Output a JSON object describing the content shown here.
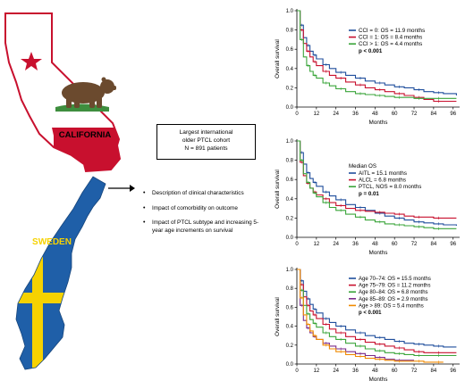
{
  "maps": {
    "california_label": "CALIFORNIA",
    "sweden_label": "SWEDEN",
    "colors": {
      "ca_red": "#c8102e",
      "ca_bear": "#6b4a2e",
      "ca_grass": "#3e8e3e",
      "se_blue": "#1f5fa8",
      "se_yellow": "#f6d200"
    }
  },
  "summary_box": {
    "line1": "Largest international",
    "line2": "older PTCL cohort",
    "line3": "N = 891 patients"
  },
  "bullets": [
    "Description of clinical characteristics",
    "Impact of comorbidity on outcome",
    "Impact of PTCL subtype and increasing 5-year age increments on survival"
  ],
  "chart_data": [
    {
      "type": "line",
      "xlabel": "Months",
      "ylabel": "Overall survival",
      "xlim": [
        0,
        100
      ],
      "ylim": [
        0,
        1.0
      ],
      "xticks": [
        0,
        12,
        24,
        36,
        48,
        60,
        72,
        84,
        96
      ],
      "yticks": [
        0.0,
        0.2,
        0.4,
        0.6,
        0.8,
        1.0
      ],
      "legend_title": "",
      "legend": [
        "CCI = 0: OS = 11.9 months",
        "CCI = 1: OS = 8.4 months",
        "CCI > 1: OS = 4.4 months"
      ],
      "pvalue": "p < 0.001",
      "series": [
        {
          "color": "#1f4e9c",
          "x": [
            0,
            2,
            4,
            6,
            8,
            10,
            12,
            16,
            20,
            24,
            30,
            36,
            42,
            48,
            54,
            60,
            66,
            72,
            78,
            84,
            90,
            98
          ],
          "y": [
            1.0,
            0.85,
            0.72,
            0.64,
            0.58,
            0.54,
            0.5,
            0.44,
            0.4,
            0.36,
            0.33,
            0.3,
            0.27,
            0.25,
            0.23,
            0.21,
            0.2,
            0.18,
            0.16,
            0.15,
            0.14,
            0.12
          ]
        },
        {
          "color": "#c8102e",
          "x": [
            0,
            2,
            4,
            6,
            8,
            10,
            12,
            16,
            20,
            24,
            30,
            36,
            42,
            48,
            54,
            60,
            66,
            72,
            78,
            84,
            90,
            98
          ],
          "y": [
            1.0,
            0.8,
            0.66,
            0.58,
            0.52,
            0.47,
            0.43,
            0.37,
            0.33,
            0.3,
            0.26,
            0.23,
            0.2,
            0.18,
            0.16,
            0.14,
            0.12,
            0.1,
            0.08,
            0.06,
            0.06,
            0.06
          ]
        },
        {
          "color": "#3aa53a",
          "x": [
            0,
            2,
            4,
            6,
            8,
            10,
            12,
            16,
            20,
            24,
            30,
            36,
            42,
            48,
            54,
            60,
            66,
            72,
            78,
            84,
            90,
            98
          ],
          "y": [
            1.0,
            0.7,
            0.52,
            0.43,
            0.37,
            0.33,
            0.3,
            0.25,
            0.22,
            0.19,
            0.16,
            0.14,
            0.13,
            0.12,
            0.11,
            0.1,
            0.1,
            0.09,
            0.09,
            0.09,
            0.09,
            0.09
          ]
        }
      ]
    },
    {
      "type": "line",
      "xlabel": "Months",
      "ylabel": "Overall survival",
      "xlim": [
        0,
        100
      ],
      "ylim": [
        0,
        1.0
      ],
      "xticks": [
        0,
        12,
        24,
        36,
        48,
        60,
        72,
        84,
        96
      ],
      "yticks": [
        0.0,
        0.2,
        0.4,
        0.6,
        0.8,
        1.0
      ],
      "legend_title": "Median OS",
      "legend": [
        "AITL = 15.1 months",
        "ALCL = 6.8 months",
        "PTCL, NOS = 8.0 months"
      ],
      "pvalue": "p = 0.01",
      "series": [
        {
          "color": "#1f4e9c",
          "x": [
            0,
            2,
            4,
            6,
            8,
            10,
            12,
            16,
            20,
            24,
            30,
            36,
            42,
            48,
            54,
            60,
            66,
            72,
            78,
            84,
            90,
            98
          ],
          "y": [
            1.0,
            0.88,
            0.76,
            0.67,
            0.61,
            0.57,
            0.53,
            0.47,
            0.43,
            0.39,
            0.34,
            0.31,
            0.28,
            0.25,
            0.22,
            0.2,
            0.18,
            0.16,
            0.15,
            0.14,
            0.13,
            0.12
          ]
        },
        {
          "color": "#c8102e",
          "x": [
            0,
            2,
            4,
            6,
            8,
            10,
            12,
            16,
            20,
            24,
            30,
            36,
            42,
            48,
            54,
            60,
            66,
            72,
            78,
            84,
            90,
            98
          ],
          "y": [
            1.0,
            0.78,
            0.64,
            0.56,
            0.51,
            0.47,
            0.44,
            0.4,
            0.36,
            0.33,
            0.3,
            0.28,
            0.27,
            0.26,
            0.25,
            0.24,
            0.22,
            0.21,
            0.21,
            0.2,
            0.2,
            0.2
          ]
        },
        {
          "color": "#3aa53a",
          "x": [
            0,
            2,
            4,
            6,
            8,
            10,
            12,
            16,
            20,
            24,
            30,
            36,
            42,
            48,
            54,
            60,
            66,
            72,
            78,
            84,
            90,
            98
          ],
          "y": [
            1.0,
            0.8,
            0.66,
            0.57,
            0.51,
            0.46,
            0.42,
            0.36,
            0.31,
            0.28,
            0.24,
            0.21,
            0.18,
            0.16,
            0.14,
            0.13,
            0.12,
            0.11,
            0.1,
            0.09,
            0.09,
            0.09
          ]
        }
      ]
    },
    {
      "type": "line",
      "xlabel": "Months",
      "ylabel": "Overall survival",
      "xlim": [
        0,
        100
      ],
      "ylim": [
        0,
        1.0
      ],
      "xticks": [
        0,
        12,
        24,
        36,
        48,
        60,
        72,
        84,
        96
      ],
      "yticks": [
        0.0,
        0.2,
        0.4,
        0.6,
        0.8,
        1.0
      ],
      "legend_title": "",
      "legend": [
        "Age 70–74: OS = 15.5 months",
        "Age 75–79: OS = 11.2 months",
        "Age 80–84: OS = 6.8 months",
        "Age 85–89: OS = 2.9 months",
        "Age > 89: OS = 5.4 months"
      ],
      "pvalue": "p < 0.001",
      "series": [
        {
          "color": "#1f4e9c",
          "x": [
            0,
            2,
            4,
            6,
            8,
            10,
            12,
            16,
            20,
            24,
            30,
            36,
            42,
            48,
            54,
            60,
            66,
            72,
            78,
            84,
            90,
            98
          ],
          "y": [
            1.0,
            0.88,
            0.77,
            0.69,
            0.63,
            0.58,
            0.54,
            0.48,
            0.44,
            0.4,
            0.36,
            0.33,
            0.3,
            0.28,
            0.26,
            0.24,
            0.22,
            0.21,
            0.2,
            0.19,
            0.18,
            0.18
          ]
        },
        {
          "color": "#c8102e",
          "x": [
            0,
            2,
            4,
            6,
            8,
            10,
            12,
            16,
            20,
            24,
            30,
            36,
            42,
            48,
            54,
            60,
            66,
            72,
            78,
            84,
            90,
            98
          ],
          "y": [
            1.0,
            0.84,
            0.71,
            0.62,
            0.56,
            0.52,
            0.48,
            0.42,
            0.37,
            0.33,
            0.29,
            0.26,
            0.23,
            0.21,
            0.19,
            0.17,
            0.15,
            0.13,
            0.12,
            0.12,
            0.12,
            0.12
          ]
        },
        {
          "color": "#3aa53a",
          "x": [
            0,
            2,
            4,
            6,
            8,
            10,
            12,
            16,
            20,
            24,
            30,
            36,
            42,
            48,
            54,
            60,
            66,
            72,
            78,
            84,
            90,
            98
          ],
          "y": [
            1.0,
            0.78,
            0.62,
            0.53,
            0.47,
            0.43,
            0.39,
            0.33,
            0.29,
            0.26,
            0.22,
            0.19,
            0.16,
            0.14,
            0.12,
            0.11,
            0.1,
            0.09,
            0.09,
            0.09,
            0.09,
            0.09
          ]
        },
        {
          "color": "#7a2a8a",
          "x": [
            0,
            2,
            4,
            6,
            8,
            10,
            12,
            16,
            20,
            24,
            30,
            36,
            42,
            48,
            54,
            60,
            66,
            72
          ],
          "y": [
            1.0,
            0.62,
            0.46,
            0.38,
            0.33,
            0.29,
            0.26,
            0.22,
            0.19,
            0.16,
            0.13,
            0.11,
            0.09,
            0.07,
            0.05,
            0.04,
            0.04,
            0.04
          ]
        },
        {
          "color": "#f08a00",
          "x": [
            0,
            2,
            4,
            6,
            8,
            10,
            12,
            16,
            20,
            24,
            30,
            36,
            42,
            48,
            54,
            60,
            66,
            72,
            78,
            84,
            90
          ],
          "y": [
            1.0,
            0.7,
            0.52,
            0.42,
            0.35,
            0.3,
            0.26,
            0.2,
            0.16,
            0.13,
            0.1,
            0.08,
            0.06,
            0.05,
            0.04,
            0.03,
            0.03,
            0.03,
            0.02,
            0.02,
            0.02
          ]
        }
      ]
    }
  ]
}
